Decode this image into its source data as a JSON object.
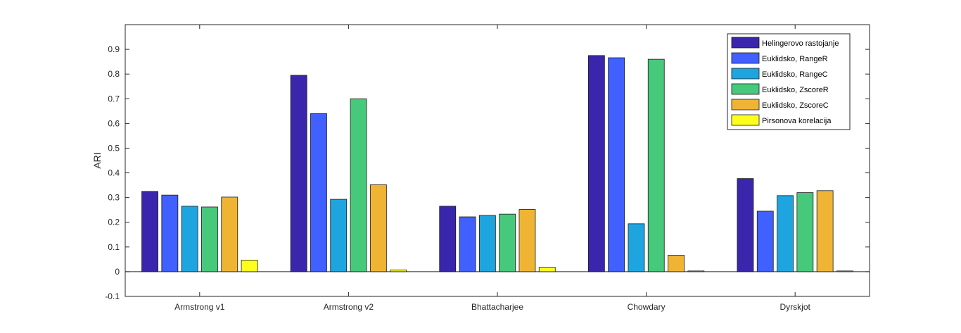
{
  "chart_data": {
    "type": "bar",
    "title": "",
    "xlabel": "",
    "ylabel": "ARI",
    "ylim": [
      -0.1,
      1.0
    ],
    "yticks": [
      "-0.1",
      "0",
      "0.1",
      "0.2",
      "0.3",
      "0.4",
      "0.5",
      "0.6",
      "0.7",
      "0.8",
      "0.9"
    ],
    "grid": false,
    "legend_position": "top-right",
    "categories": [
      "Armstrong v1",
      "Armstrong v2",
      "Bhattacharjee",
      "Chowdary",
      "Dyrskjot"
    ],
    "series": [
      {
        "name": "Helingerovo rastojanje",
        "color": "#3a26ad",
        "values": [
          0.325,
          0.795,
          0.265,
          0.875,
          0.377
        ]
      },
      {
        "name": "Euklidsko, RangeR",
        "color": "#4060ff",
        "values": [
          0.31,
          0.64,
          0.222,
          0.866,
          0.245
        ]
      },
      {
        "name": "Euklidsko, RangeC",
        "color": "#1ea5df",
        "values": [
          0.265,
          0.293,
          0.228,
          0.194,
          0.308
        ]
      },
      {
        "name": "Euklidsko, ZscoreR",
        "color": "#47c97c",
        "values": [
          0.262,
          0.7,
          0.233,
          0.86,
          0.32
        ]
      },
      {
        "name": "Euklidsko, ZscoreC",
        "color": "#f0b435",
        "values": [
          0.302,
          0.352,
          0.252,
          0.067,
          0.328
        ]
      },
      {
        "name": "Pirsonova korelacija",
        "color": "#ffff1e",
        "values": [
          0.047,
          0.007,
          0.018,
          0.003,
          0.003
        ]
      }
    ]
  }
}
